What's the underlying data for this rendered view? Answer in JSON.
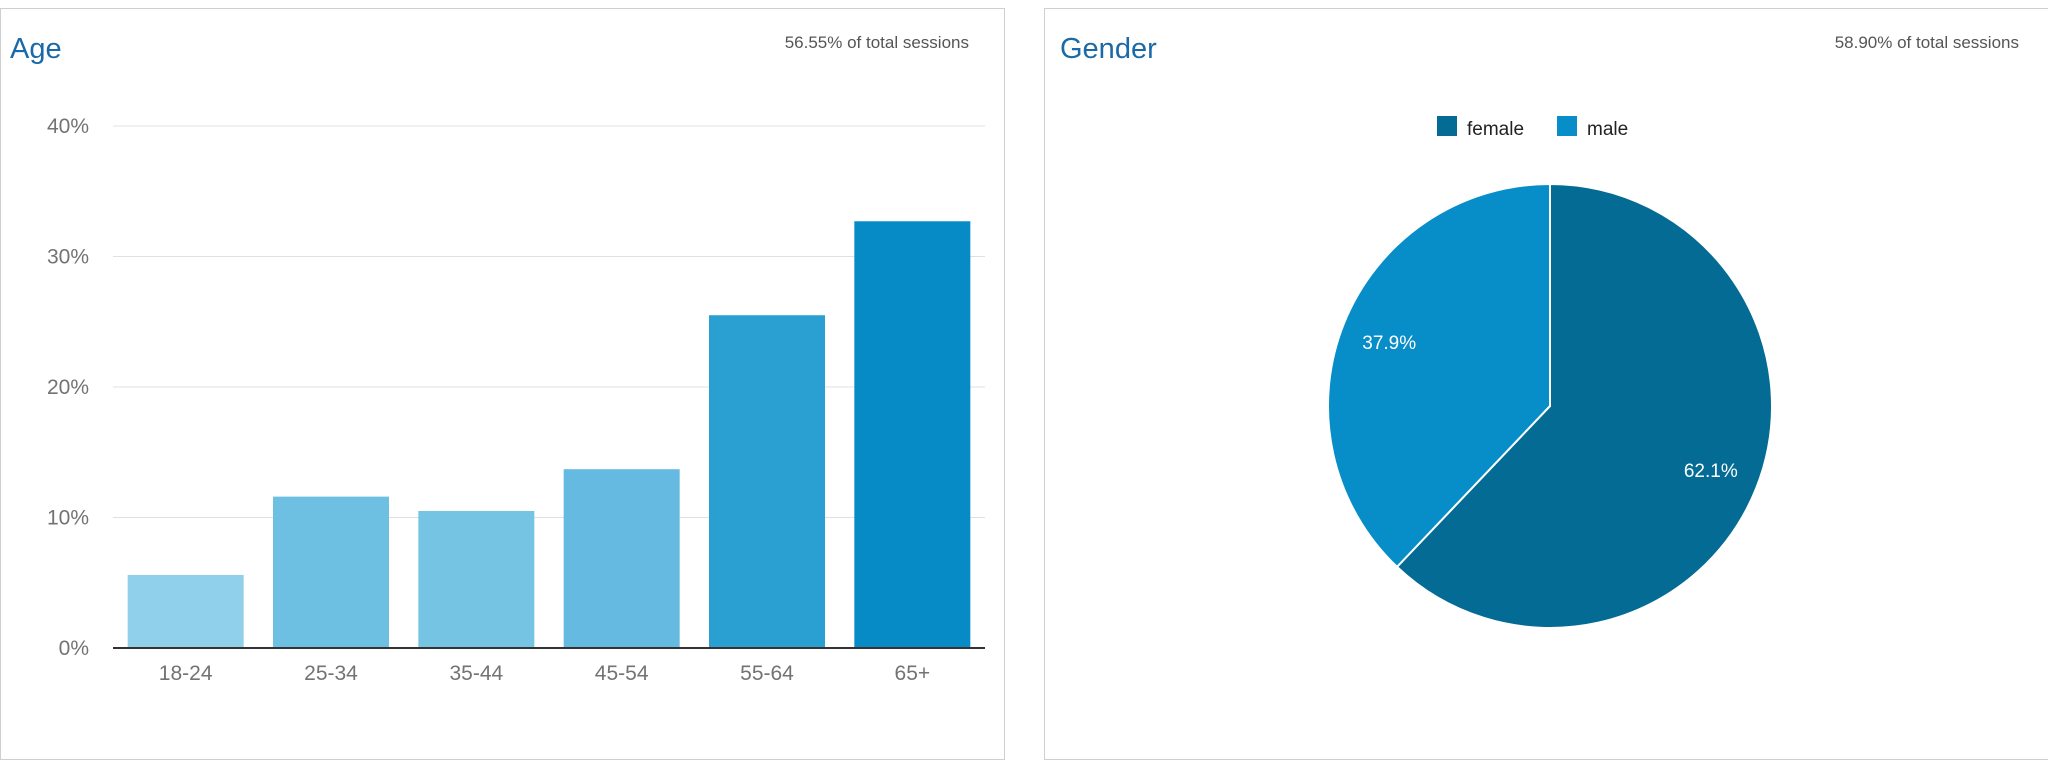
{
  "chart_data": [
    {
      "type": "bar",
      "title": "Age",
      "subtitle": "56.55% of total sessions",
      "categories": [
        "18-24",
        "25-34",
        "35-44",
        "45-54",
        "55-64",
        "65+"
      ],
      "values": [
        5.6,
        11.6,
        10.5,
        13.7,
        25.5,
        32.7
      ],
      "ylim": [
        0,
        40
      ],
      "yticks": [
        "0%",
        "10%",
        "20%",
        "30%",
        "40%"
      ],
      "ytick_values": [
        0,
        10,
        20,
        30,
        40
      ],
      "grid": true,
      "colors": [
        "#90d0ea",
        "#6ec0e2",
        "#76c4e4",
        "#64bae0",
        "#2a9fd2",
        "#078bc6"
      ]
    },
    {
      "type": "pie",
      "title": "Gender",
      "subtitle": "58.90% of total sessions",
      "legend_position": "top-center",
      "slices": [
        {
          "label": "female",
          "value": 62.1,
          "display": "62.1%",
          "color": "#036b94"
        },
        {
          "label": "male",
          "value": 37.9,
          "display": "37.9%",
          "color": "#078dc8"
        }
      ]
    }
  ]
}
